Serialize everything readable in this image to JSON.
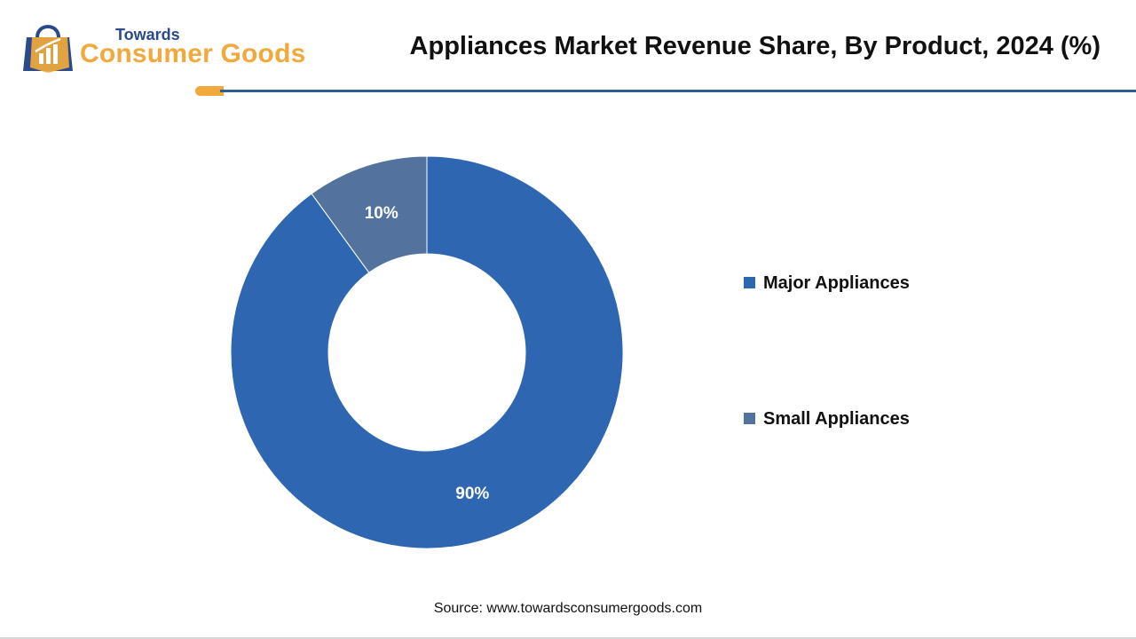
{
  "logo": {
    "top_text": "Towards",
    "main_text": "Consumer Goods"
  },
  "title": "Appliances Market Revenue Share, By Product, 2024 (%)",
  "source": "Source: www.towardsconsumergoods.com",
  "colors": {
    "major": "#2e66b1",
    "small": "#53729e",
    "accent": "#f2a93b",
    "rule": "#2e5d8f"
  },
  "chart_data": {
    "type": "pie",
    "variant": "donut",
    "title": "Appliances Market Revenue Share, By Product, 2024 (%)",
    "categories": [
      "Major Appliances",
      "Small Appliances"
    ],
    "values": [
      90,
      10
    ],
    "labels": [
      "90%",
      "10%"
    ],
    "legend_position": "right"
  }
}
